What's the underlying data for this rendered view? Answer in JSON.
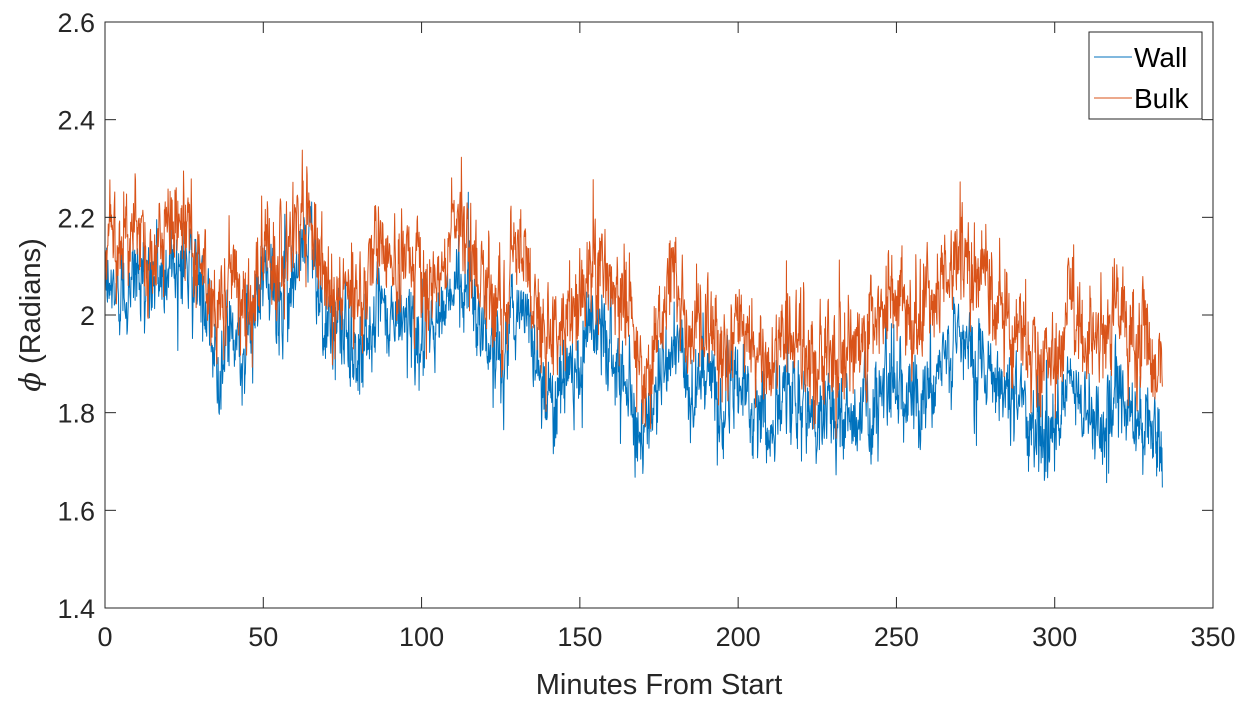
{
  "chart_data": {
    "type": "line",
    "title": "",
    "xlabel": "Minutes From Start",
    "ylabel_symbol": "ϕ",
    "ylabel_text": " (Radians)",
    "xlim": [
      0,
      350
    ],
    "ylim": [
      1.4,
      2.6
    ],
    "xticks": [
      0,
      50,
      100,
      150,
      200,
      250,
      300,
      350
    ],
    "yticks": [
      1.4,
      1.6,
      1.8,
      2,
      2.2,
      2.4,
      2.6
    ],
    "xtick_labels": [
      "0",
      "50",
      "100",
      "150",
      "200",
      "250",
      "300",
      "350"
    ],
    "ytick_labels": [
      "1.4",
      "1.6",
      "1.8",
      "2",
      "2.2",
      "2.4",
      "2.6"
    ],
    "grid": false,
    "legend_position": "top-right",
    "series": [
      {
        "name": "Wall",
        "color": "#0072BD",
        "x": [
          0,
          5,
          10,
          15,
          20,
          25,
          30,
          35,
          40,
          45,
          50,
          55,
          60,
          65,
          70,
          75,
          80,
          85,
          90,
          95,
          100,
          105,
          110,
          115,
          120,
          125,
          130,
          135,
          140,
          145,
          150,
          155,
          160,
          165,
          170,
          175,
          180,
          185,
          190,
          195,
          200,
          205,
          210,
          215,
          220,
          225,
          230,
          235,
          240,
          245,
          250,
          255,
          260,
          265,
          270,
          275,
          280,
          285,
          290,
          295,
          300,
          305,
          310,
          315,
          320,
          325,
          330,
          334
        ],
        "y": [
          2.04,
          2.06,
          2.08,
          2.07,
          2.1,
          2.12,
          2.05,
          1.9,
          1.98,
          1.92,
          2.08,
          2.02,
          2.1,
          2.18,
          1.95,
          1.98,
          1.92,
          2.0,
          1.98,
          2.0,
          1.95,
          1.98,
          2.05,
          2.08,
          1.96,
          1.9,
          2.03,
          1.96,
          1.82,
          1.88,
          1.92,
          2.0,
          1.92,
          1.88,
          1.72,
          1.86,
          1.95,
          1.84,
          1.88,
          1.82,
          1.86,
          1.82,
          1.76,
          1.84,
          1.82,
          1.78,
          1.8,
          1.78,
          1.8,
          1.84,
          1.88,
          1.82,
          1.86,
          1.9,
          1.94,
          1.92,
          1.9,
          1.84,
          1.82,
          1.76,
          1.74,
          1.86,
          1.8,
          1.78,
          1.82,
          1.8,
          1.76,
          1.7
        ]
      },
      {
        "name": "Bulk",
        "color": "#D95319",
        "x": [
          0,
          5,
          10,
          15,
          20,
          25,
          30,
          35,
          40,
          45,
          50,
          55,
          60,
          65,
          70,
          75,
          80,
          85,
          90,
          95,
          100,
          105,
          110,
          115,
          120,
          125,
          130,
          135,
          140,
          145,
          150,
          155,
          160,
          165,
          170,
          175,
          180,
          185,
          190,
          195,
          200,
          205,
          210,
          215,
          220,
          225,
          230,
          235,
          240,
          245,
          250,
          255,
          260,
          265,
          270,
          275,
          280,
          285,
          290,
          295,
          300,
          305,
          310,
          315,
          320,
          325,
          330,
          334
        ],
        "y": [
          2.14,
          2.16,
          2.18,
          2.1,
          2.16,
          2.22,
          2.12,
          1.98,
          2.08,
          2.0,
          2.16,
          2.1,
          2.18,
          2.2,
          2.02,
          2.08,
          2.02,
          2.12,
          2.1,
          2.14,
          2.06,
          2.08,
          2.18,
          2.2,
          2.06,
          2.0,
          2.14,
          2.08,
          1.94,
          2.0,
          2.02,
          2.12,
          2.06,
          2.02,
          1.84,
          1.98,
          2.1,
          1.96,
          2.02,
          1.94,
          1.98,
          1.96,
          1.88,
          1.98,
          1.96,
          1.86,
          1.94,
          1.92,
          1.96,
          2.0,
          2.04,
          1.98,
          2.04,
          2.08,
          2.12,
          2.1,
          2.04,
          1.98,
          1.96,
          1.88,
          1.9,
          2.02,
          1.96,
          1.94,
          2.0,
          1.96,
          1.92,
          1.86
        ]
      }
    ]
  }
}
